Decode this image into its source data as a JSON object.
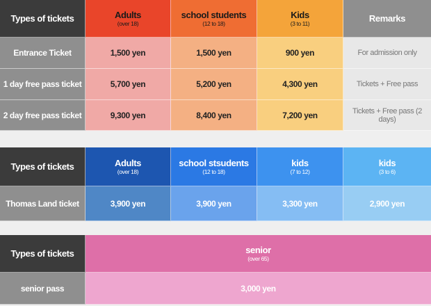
{
  "table1": {
    "headers": [
      {
        "label": "Types of tickets",
        "sub": ""
      },
      {
        "label": "Adults",
        "sub": "(over 18)"
      },
      {
        "label": "school students",
        "sub": "(12 to 18)"
      },
      {
        "label": "Kids",
        "sub": "(3 to 11)"
      },
      {
        "label": "Remarks",
        "sub": ""
      }
    ],
    "rows": [
      {
        "label": "Entrance Ticket",
        "values": [
          "1,500 yen",
          "1,500 yen",
          "900 yen"
        ],
        "remark": "For admission only"
      },
      {
        "label": "1 day free pass ticket",
        "values": [
          "5,700 yen",
          "5,200 yen",
          "4,300 yen"
        ],
        "remark": "Tickets + Free pass"
      },
      {
        "label": "2 day free pass ticket",
        "values": [
          "9,300 yen",
          "8,400 yen",
          "7,200 yen"
        ],
        "remark": "Tickets + Free pass (2 days)"
      }
    ]
  },
  "table2": {
    "headers": [
      {
        "label": "Types of tickets",
        "sub": ""
      },
      {
        "label": "Adults",
        "sub": "(over 18)"
      },
      {
        "label": "school stsudents",
        "sub": "(12 to 18)"
      },
      {
        "label": "kids",
        "sub": "(7 to 12)"
      },
      {
        "label": "kids",
        "sub": "(3 to 6)"
      }
    ],
    "rows": [
      {
        "label": "Thomas Land ticket",
        "values": [
          "3,900 yen",
          "3,900 yen",
          "3,300 yen",
          "2,900 yen"
        ]
      }
    ]
  },
  "table3": {
    "headers": [
      {
        "label": "Types of tickets",
        "sub": ""
      },
      {
        "label": "senior",
        "sub": "(over 65)"
      }
    ],
    "rows": [
      {
        "label": "senior pass",
        "values": [
          "3,000 yen"
        ]
      }
    ]
  },
  "colors": {
    "t1_header": [
      "#3b3b3b",
      "#e9452a",
      "#ef6d33",
      "#f4a43a",
      "#8f8f8f"
    ],
    "t1_cells": [
      "#f0a9a6",
      "#f4b083",
      "#f9cf7f",
      "#e8e8e8"
    ],
    "t2_header": [
      "#3b3b3b",
      "#1d56b0",
      "#2b79e4",
      "#3d92ef",
      "#5cb4f3"
    ],
    "t2_cells": [
      "#4f87c6",
      "#6aa3ec",
      "#85bdf3",
      "#98cdf3"
    ],
    "t3_header": [
      "#3b3b3b",
      "#de6fa8"
    ],
    "t3_cells": [
      "#eea6cf"
    ]
  }
}
